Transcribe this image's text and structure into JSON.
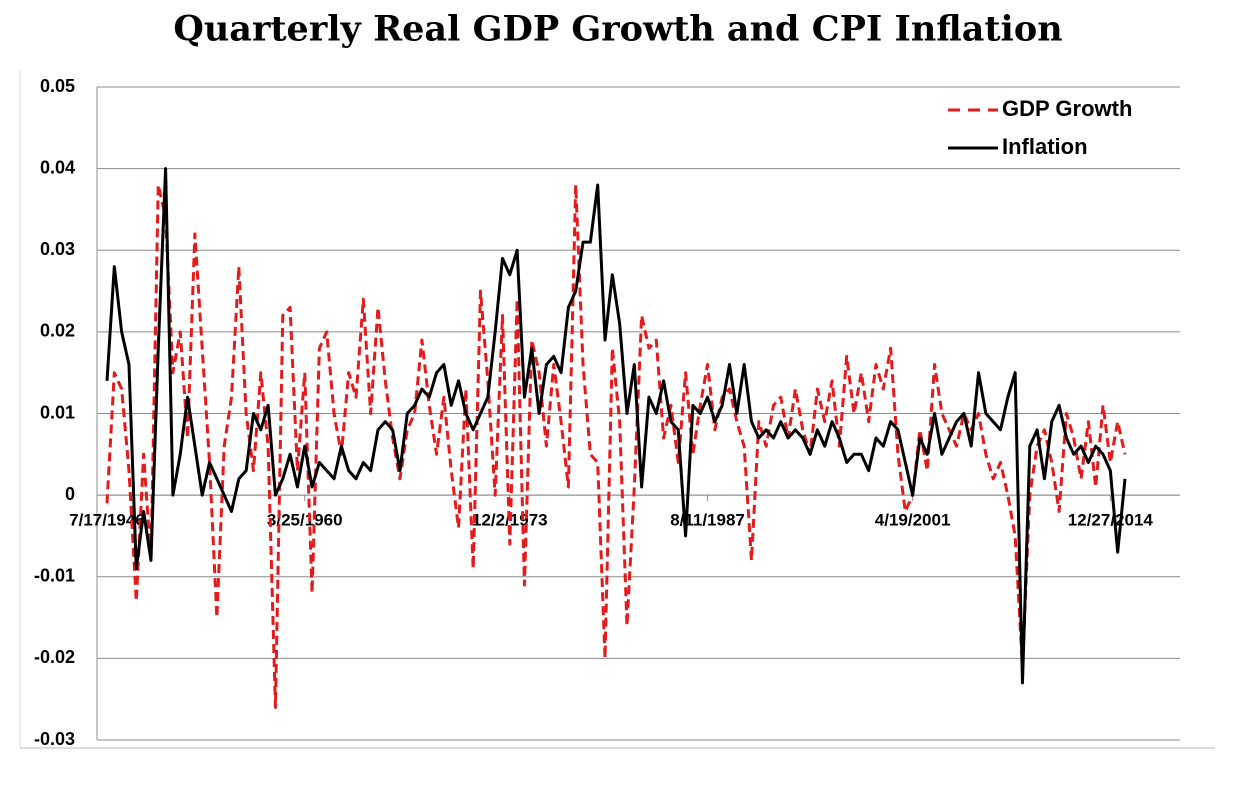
{
  "chart_data": {
    "type": "line",
    "title": "Quarterly Real GDP Growth and CPI Inflation",
    "categories": [
      "7/17/1946",
      null,
      null,
      null,
      null,
      null,
      null,
      null,
      null,
      null,
      null,
      null,
      null,
      null,
      null,
      null,
      null,
      null,
      null,
      null,
      null,
      null,
      null,
      null,
      null,
      null,
      null,
      "3/25/1960",
      null,
      null,
      null,
      null,
      null,
      null,
      null,
      null,
      null,
      null,
      null,
      null,
      null,
      null,
      null,
      null,
      null,
      null,
      null,
      null,
      null,
      null,
      null,
      null,
      null,
      null,
      null,
      "12/2/1973",
      null,
      null,
      null,
      null,
      null,
      null,
      null,
      null,
      null,
      null,
      null,
      null,
      null,
      null,
      null,
      null,
      null,
      null,
      null,
      null,
      null,
      null,
      null,
      null,
      null,
      null,
      "8/11/1987",
      null,
      null,
      null,
      null,
      null,
      null,
      null,
      null,
      null,
      null,
      null,
      null,
      null,
      null,
      null,
      null,
      null,
      null,
      null,
      null,
      null,
      null,
      null,
      null,
      null,
      null,
      null,
      "4/19/2001",
      null,
      null,
      null,
      null,
      null,
      null,
      null,
      null,
      null,
      null,
      null,
      null,
      null,
      null,
      null,
      null,
      null,
      null,
      null,
      null,
      null,
      null,
      null,
      null,
      null,
      null,
      "12/27/2014",
      null,
      null
    ],
    "series": [
      {
        "name": "GDP Growth",
        "color": "#e41a1c",
        "dashed": true,
        "values": [
          -0.001,
          0.015,
          0.013,
          0.003,
          -0.013,
          0.005,
          -0.008,
          0.038,
          0.034,
          0.015,
          0.02,
          0.007,
          0.032,
          0.018,
          0.004,
          -0.015,
          0.006,
          0.012,
          0.028,
          0.01,
          0.003,
          0.015,
          0.006,
          -0.026,
          0.022,
          0.023,
          0.003,
          0.015,
          -0.012,
          0.018,
          0.02,
          0.01,
          0.005,
          0.015,
          0.012,
          0.024,
          0.01,
          0.023,
          0.014,
          0.007,
          0.002,
          0.008,
          0.01,
          0.019,
          0.011,
          0.005,
          0.012,
          0.003,
          -0.004,
          0.013,
          -0.009,
          0.025,
          0.014,
          0.0,
          0.022,
          -0.006,
          0.024,
          -0.011,
          0.019,
          0.015,
          0.006,
          0.016,
          0.009,
          0.001,
          0.038,
          0.016,
          0.005,
          0.004,
          -0.02,
          0.018,
          0.009,
          -0.016,
          0.001,
          0.022,
          0.018,
          0.019,
          0.007,
          0.011,
          0.004,
          0.015,
          0.005,
          0.011,
          0.016,
          0.008,
          0.012,
          0.013,
          0.009,
          0.006,
          -0.008,
          0.009,
          0.006,
          0.011,
          0.012,
          0.007,
          0.013,
          0.008,
          0.005,
          0.013,
          0.009,
          0.014,
          0.006,
          0.017,
          0.01,
          0.015,
          0.009,
          0.016,
          0.013,
          0.018,
          0.005,
          -0.002,
          0.0,
          0.008,
          0.003,
          0.016,
          0.01,
          0.008,
          0.006,
          0.01,
          0.008,
          0.01,
          0.005,
          0.002,
          0.004,
          0.0,
          -0.005,
          -0.021,
          0.0,
          0.006,
          0.008,
          0.004,
          -0.002,
          0.01,
          0.007,
          0.002,
          0.009,
          0.001,
          0.011,
          0.004,
          0.009,
          0.005
        ]
      },
      {
        "name": "Inflation",
        "color": "#000000",
        "dashed": false,
        "values": [
          0.014,
          0.028,
          0.02,
          0.016,
          -0.009,
          -0.002,
          -0.008,
          0.018,
          0.04,
          0.0,
          0.005,
          0.012,
          0.006,
          0.0,
          0.004,
          0.002,
          0.0,
          -0.002,
          0.002,
          0.003,
          0.01,
          0.008,
          0.011,
          0.0,
          0.002,
          0.005,
          0.001,
          0.006,
          0.001,
          0.004,
          0.003,
          0.002,
          0.006,
          0.003,
          0.002,
          0.004,
          0.003,
          0.008,
          0.009,
          0.008,
          0.003,
          0.01,
          0.011,
          0.013,
          0.012,
          0.015,
          0.016,
          0.011,
          0.014,
          0.01,
          0.008,
          0.01,
          0.012,
          0.02,
          0.029,
          0.027,
          0.03,
          0.012,
          0.018,
          0.01,
          0.016,
          0.017,
          0.015,
          0.023,
          0.025,
          0.031,
          0.031,
          0.038,
          0.019,
          0.027,
          0.021,
          0.01,
          0.016,
          0.001,
          0.012,
          0.01,
          0.014,
          0.009,
          0.008,
          -0.005,
          0.011,
          0.01,
          0.012,
          0.009,
          0.011,
          0.016,
          0.01,
          0.016,
          0.009,
          0.007,
          0.008,
          0.007,
          0.009,
          0.007,
          0.008,
          0.007,
          0.005,
          0.008,
          0.006,
          0.009,
          0.007,
          0.004,
          0.005,
          0.005,
          0.003,
          0.007,
          0.006,
          0.009,
          0.008,
          0.004,
          0.0,
          0.007,
          0.005,
          0.01,
          0.005,
          0.007,
          0.009,
          0.01,
          0.006,
          0.015,
          0.01,
          0.009,
          0.008,
          0.012,
          0.015,
          -0.023,
          0.006,
          0.008,
          0.002,
          0.009,
          0.011,
          0.007,
          0.005,
          0.006,
          0.004,
          0.006,
          0.005,
          0.003,
          -0.007,
          0.002
        ]
      }
    ],
    "ylim": [
      -0.03,
      0.05
    ],
    "yticks": [
      -0.03,
      -0.02,
      -0.01,
      0,
      0.01,
      0.02,
      0.03,
      0.04,
      0.05
    ],
    "grid": true,
    "legend": "top-right"
  }
}
